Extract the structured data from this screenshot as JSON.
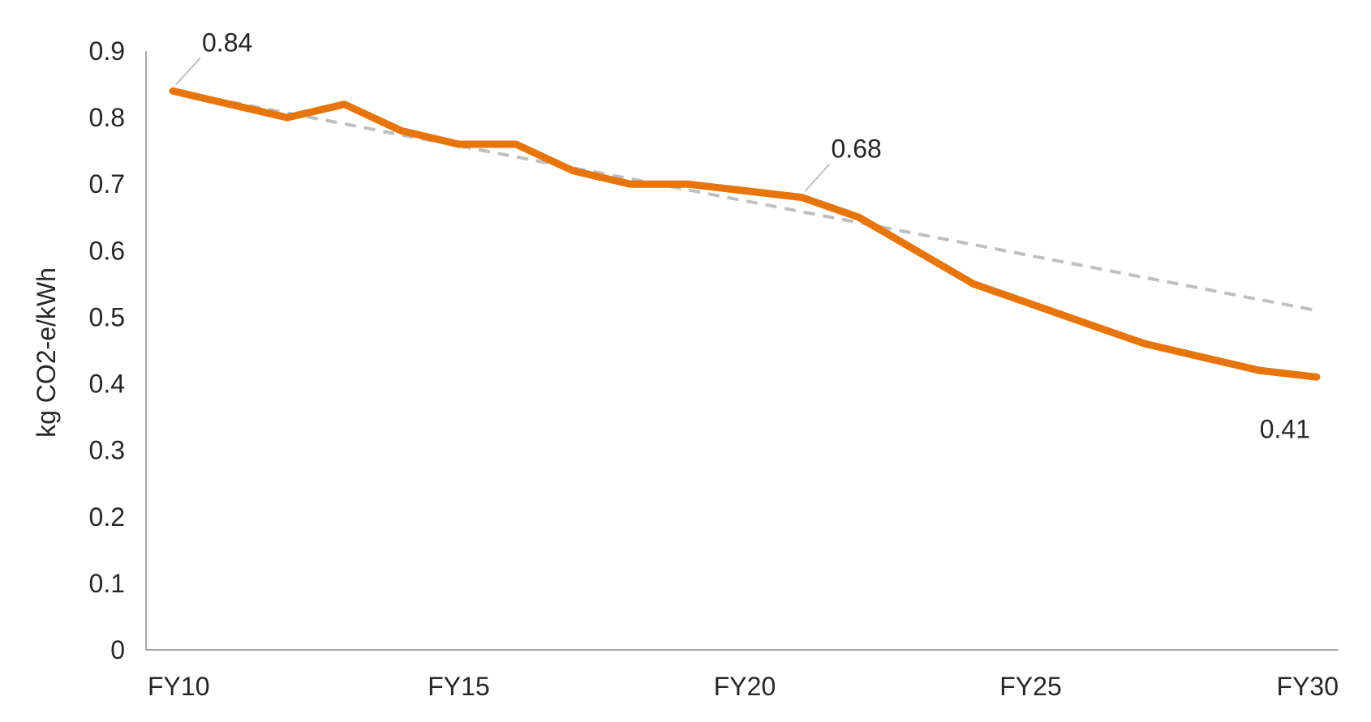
{
  "chart_data": {
    "type": "line",
    "title": "",
    "xlabel": "",
    "ylabel": "kg CO2-e/kWh",
    "x": [
      "FY10",
      "FY11",
      "FY12",
      "FY13",
      "FY14",
      "FY15",
      "FY16",
      "FY17",
      "FY18",
      "FY19",
      "FY20",
      "FY21",
      "FY22",
      "FY23",
      "FY24",
      "FY25",
      "FY26",
      "FY27",
      "FY28",
      "FY29",
      "FY30"
    ],
    "xtick_labels": [
      "FY10",
      "FY15",
      "FY20",
      "FY25",
      "FY30"
    ],
    "ylim": [
      0,
      0.9
    ],
    "yticks": [
      0,
      0.1,
      0.2,
      0.3,
      0.4,
      0.5,
      0.6,
      0.7,
      0.8,
      0.9
    ],
    "ytick_labels": [
      "0",
      "0.1",
      "0.2",
      "0.3",
      "0.4",
      "0.5",
      "0.6",
      "0.7",
      "0.8",
      "0.9"
    ],
    "grid": false,
    "series": [
      {
        "style": "solid",
        "color": "#E8740C",
        "values": [
          0.84,
          0.82,
          0.8,
          0.82,
          0.78,
          0.76,
          0.76,
          0.72,
          0.7,
          0.7,
          0.69,
          0.68,
          0.65,
          0.6,
          0.55,
          0.52,
          0.49,
          0.46,
          0.44,
          0.42,
          0.41
        ]
      },
      {
        "style": "dashed",
        "color": "#BFBFBF",
        "values": [
          0.84,
          0.8235,
          0.807,
          0.7905,
          0.774,
          0.7575,
          0.741,
          0.7245,
          0.708,
          0.6915,
          0.675,
          0.6585,
          0.642,
          0.6255,
          0.609,
          0.5925,
          0.576,
          0.5595,
          0.543,
          0.5265,
          0.51
        ]
      }
    ],
    "annotations": [
      {
        "text": "0.84",
        "x": "FY10",
        "y": 0.84
      },
      {
        "text": "0.68",
        "x": "FY21",
        "y": 0.68
      },
      {
        "text": "0.41",
        "x": "FY30",
        "y": 0.41
      }
    ]
  }
}
